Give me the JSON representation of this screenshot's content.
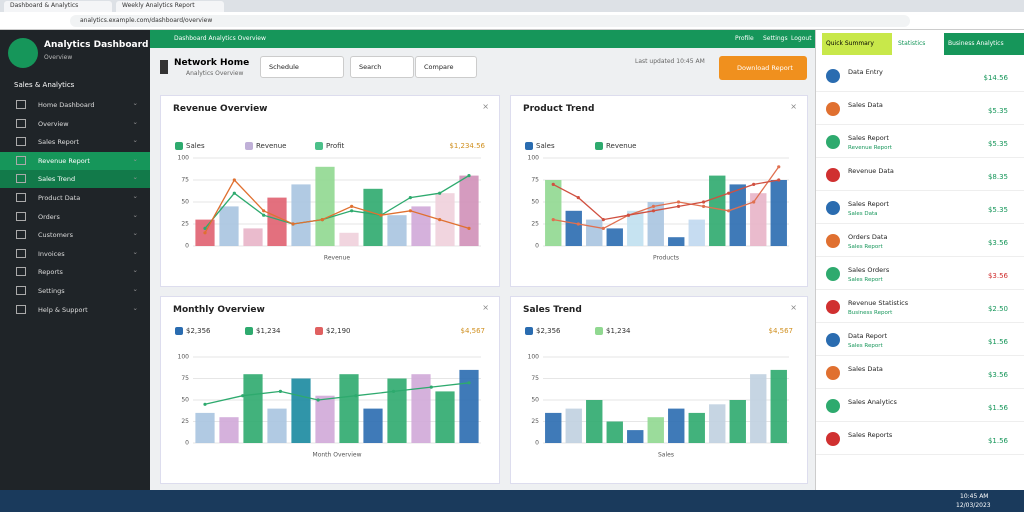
{
  "browser": {
    "tabs": [
      "Dashboard & Analytics",
      "Weekly Analytics Report"
    ],
    "url": "analytics.example.com/dashboard/overview"
  },
  "sidebar": {
    "brand": "Analytics Dashboard",
    "brand_sub": "Overview",
    "section": "Sales & Analytics",
    "items": [
      "Home Dashboard",
      "Overview",
      "Sales Report",
      "Revenue Report",
      "Sales Trend",
      "Product Data",
      "Orders",
      "Customers",
      "Invoices",
      "Reports",
      "Settings",
      "Help & Support"
    ],
    "active": 3
  },
  "topbar": {
    "left": "Dashboard Analytics Overview",
    "right": [
      "Profile",
      "Settings",
      "Logout"
    ]
  },
  "header": {
    "title": "Network Home",
    "subtitle": "Analytics Overview",
    "buttons": [
      "Schedule",
      "Search",
      "Compare"
    ],
    "updated": "Last updated 10:45 AM",
    "action": "Download Report"
  },
  "panels": [
    {
      "title": "Revenue Overview",
      "legend": [
        {
          "name": "Sales",
          "color": "#2eaa6e"
        },
        {
          "name": "Revenue",
          "color": "#c0b0d8"
        },
        {
          "name": "Profit",
          "color": "#4cc08a"
        }
      ],
      "stat": "$1,234.56",
      "xlabel": "Revenue",
      "ylim": [
        0,
        100
      ],
      "yticks": [
        0,
        25,
        50,
        75,
        100
      ],
      "bars": {
        "values": [
          30,
          45,
          20,
          55,
          70,
          90,
          15,
          65,
          35,
          45,
          60,
          80
        ],
        "colors": [
          "#e06070",
          "#a8c4e0",
          "#e8b4c8",
          "#e06070",
          "#a8c4e0",
          "#90d890",
          "#f0d0dc",
          "#2eaa6e",
          "#a8c4e0",
          "#d0a8d8",
          "#f0d0dc",
          "#d090b8"
        ]
      },
      "line": {
        "values": [
          20,
          60,
          35,
          25,
          30,
          40,
          35,
          55,
          60,
          80
        ],
        "color": "#2eaa6e"
      },
      "line2": {
        "values": [
          15,
          75,
          40,
          25,
          30,
          45,
          35,
          40,
          30,
          20
        ],
        "color": "#e07030"
      }
    },
    {
      "title": "Product Trend",
      "legend": [
        {
          "name": "Sales",
          "color": "#2a6cb0"
        },
        {
          "name": "Revenue",
          "color": "#2eaa6e"
        }
      ],
      "stat": "",
      "xlabel": "Products",
      "ylim": [
        0,
        100
      ],
      "yticks": [
        0,
        25,
        50,
        75,
        100
      ],
      "bars": {
        "values": [
          75,
          40,
          30,
          20,
          40,
          50,
          10,
          30,
          80,
          70,
          60,
          75
        ],
        "colors": [
          "#90d890",
          "#2a6cb0",
          "#a8c4e0",
          "#2a6cb0",
          "#c0e0f0",
          "#a8c4e0",
          "#2a6cb0",
          "#c0d8f0",
          "#2eaa6e",
          "#2a6cb0",
          "#e8b4c8",
          "#2a6cb0"
        ]
      },
      "line": {
        "values": [
          30,
          25,
          20,
          35,
          45,
          50,
          45,
          40,
          50,
          90
        ],
        "color": "#e07050"
      },
      "line2": {
        "values": [
          70,
          55,
          30,
          35,
          40,
          45,
          50,
          60,
          70,
          75
        ],
        "color": "#d05040"
      }
    },
    {
      "title": "Monthly Overview",
      "legend": [
        {
          "name": "$2,356",
          "color": "#2a6cb0"
        },
        {
          "name": "$1,234",
          "color": "#2eaa6e"
        },
        {
          "name": "$2,190",
          "color": "#e06060"
        }
      ],
      "stat": "$4,567",
      "xlabel": "Month Overview",
      "ylim": [
        0,
        100
      ],
      "yticks": [
        0,
        25,
        50,
        75,
        100
      ],
      "bars": {
        "values": [
          35,
          30,
          80,
          40,
          75,
          55,
          80,
          40,
          75,
          80,
          60,
          85
        ],
        "colors": [
          "#a8c4e0",
          "#d0a8d8",
          "#2eaa6e",
          "#a8c4e0",
          "#1a8aa0",
          "#d0a8d8",
          "#2eaa6e",
          "#2a6cb0",
          "#2eaa6e",
          "#d0a8d8",
          "#2eaa6e",
          "#2a6cb0"
        ]
      },
      "line": {
        "values": [
          45,
          55,
          60,
          50,
          55,
          60,
          65,
          70
        ],
        "color": "#2eaa6e"
      },
      "line2": null
    },
    {
      "title": "Sales Trend",
      "legend": [
        {
          "name": "$2,356",
          "color": "#2a6cb0"
        },
        {
          "name": "$1,234",
          "color": "#90d890"
        }
      ],
      "stat": "$4,567",
      "xlabel": "Sales",
      "ylim": [
        0,
        100
      ],
      "yticks": [
        0,
        25,
        50,
        75,
        100
      ],
      "bars": {
        "values": [
          35,
          40,
          50,
          25,
          15,
          30,
          40,
          35,
          45,
          50,
          80,
          85
        ],
        "colors": [
          "#2a6cb0",
          "#c0d0e0",
          "#2eaa6e",
          "#2eaa6e",
          "#2a6cb0",
          "#90d890",
          "#2a6cb0",
          "#2eaa6e",
          "#c0d0e0",
          "#2eaa6e",
          "#c0d0e0",
          "#2eaa6e"
        ]
      },
      "line": null,
      "line2": null
    }
  ],
  "right": {
    "tabs": [
      "Quick Summary",
      "Statistics",
      "Business Analytics"
    ],
    "items": [
      {
        "name": "Data Entry",
        "sub": "",
        "value": "$14.56"
      },
      {
        "name": "Sales Data",
        "sub": "",
        "value": "$5.35"
      },
      {
        "name": "Sales Report",
        "sub": "Revenue Report",
        "value": "$5.35"
      },
      {
        "name": "Revenue Data",
        "sub": "",
        "value": "$8.35"
      },
      {
        "name": "Sales Report",
        "sub": "Sales Data",
        "value": "$5.35"
      },
      {
        "name": "Orders Data",
        "sub": "Sales Report",
        "value": "$3.56"
      },
      {
        "name": "Sales Orders",
        "sub": "Sales Report",
        "value": "$3.56"
      },
      {
        "name": "Revenue Statistics",
        "sub": "Business Report",
        "value": "$2.50"
      },
      {
        "name": "Data Report",
        "sub": "Sales Report",
        "value": "$1.56"
      },
      {
        "name": "Sales Data",
        "sub": "",
        "value": "$3.56"
      },
      {
        "name": "Sales Analytics",
        "sub": "",
        "value": "$1.56"
      },
      {
        "name": "Sales Reports",
        "sub": "",
        "value": "$1.56"
      }
    ]
  },
  "taskbar": {
    "time": "10:45 AM",
    "date": "12/03/2023"
  }
}
